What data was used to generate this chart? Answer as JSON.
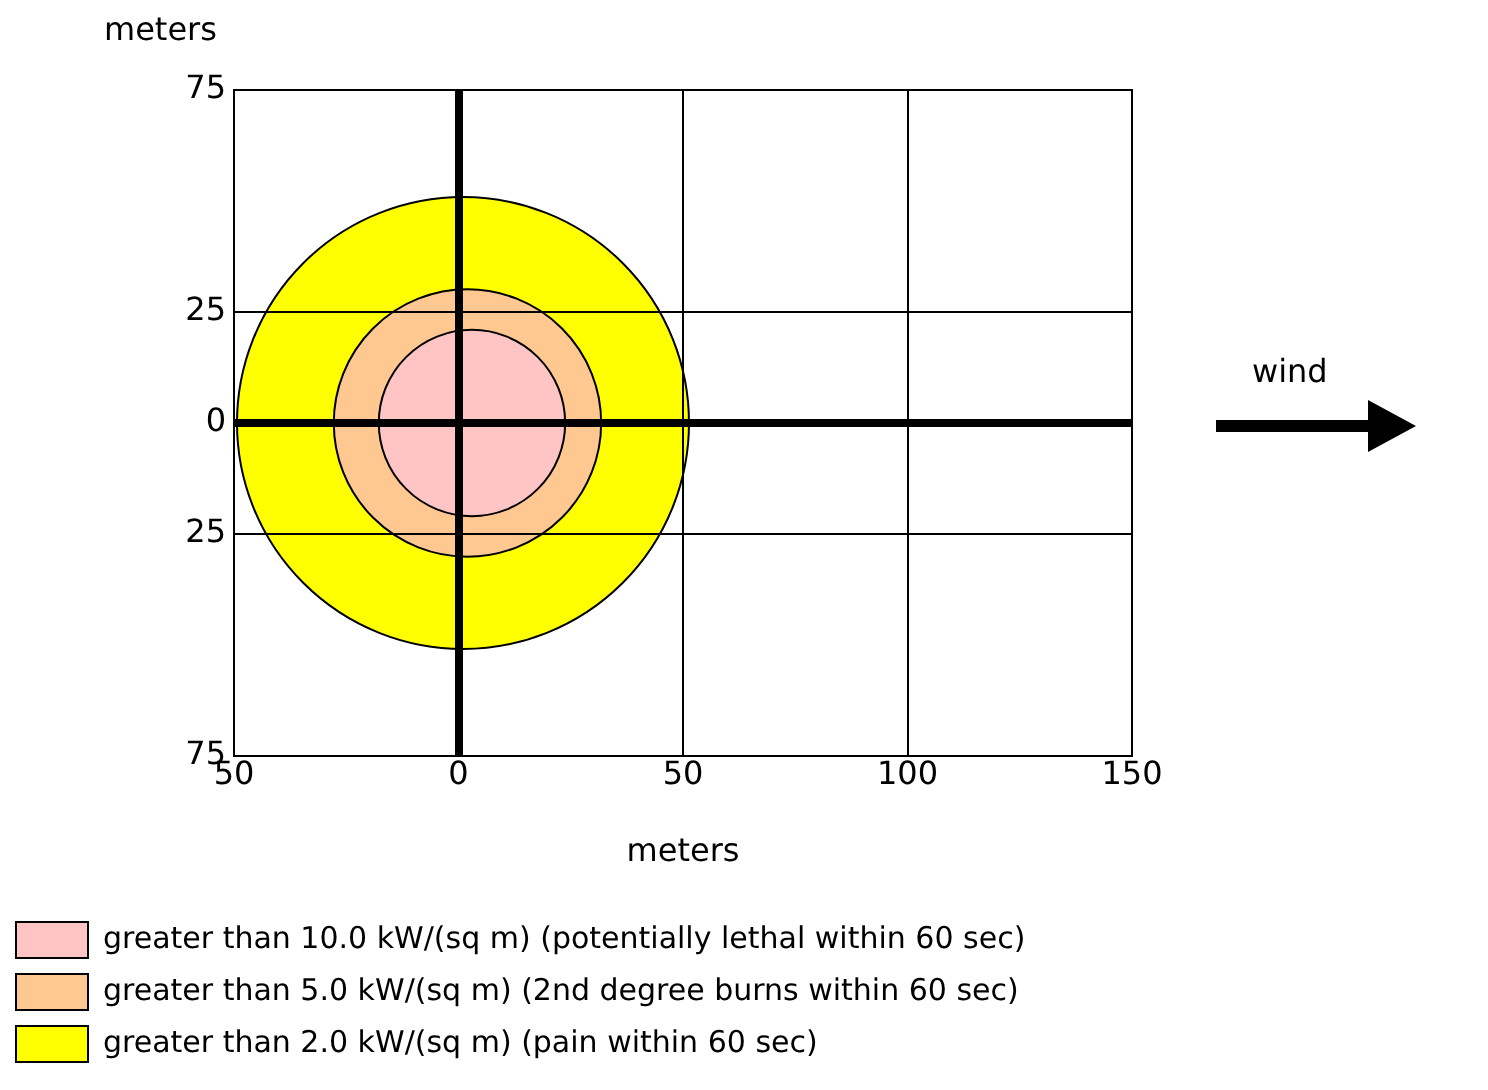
{
  "chart_data": {
    "type": "bubble",
    "xlabel": "meters",
    "ylabel": "meters",
    "xlim": [
      -50,
      150
    ],
    "ylim": [
      -75,
      75
    ],
    "xticks": [
      {
        "value": -50,
        "label": "50"
      },
      0,
      50,
      100,
      150
    ],
    "yticks": [
      {
        "value": -75,
        "label": "75"
      },
      {
        "value": -25,
        "label": "25"
      },
      0,
      25,
      75
    ],
    "grid": true,
    "legend": "bottom",
    "annotations": [
      "wind"
    ],
    "series": [
      {
        "name": "greater than 10.0 kW/(sq m) (potentially lethal within 60 sec)",
        "color": "#ffc4c4",
        "x": [
          3
        ],
        "values": [
          0
        ],
        "sizes": [
          0.17
        ]
      },
      {
        "name": "greater than 5.0 kW/(sq m) (2nd degree burns within 60 sec)",
        "color": "#ffc890",
        "x": [
          2
        ],
        "values": [
          0
        ],
        "sizes": [
          0.35
        ]
      },
      {
        "name": "greater than 2.0 kW/(sq m) (pain within 60 sec)",
        "color": "#ffff00",
        "x": [
          1
        ],
        "values": [
          0
        ],
        "sizes": [
          1
        ]
      }
    ]
  }
}
